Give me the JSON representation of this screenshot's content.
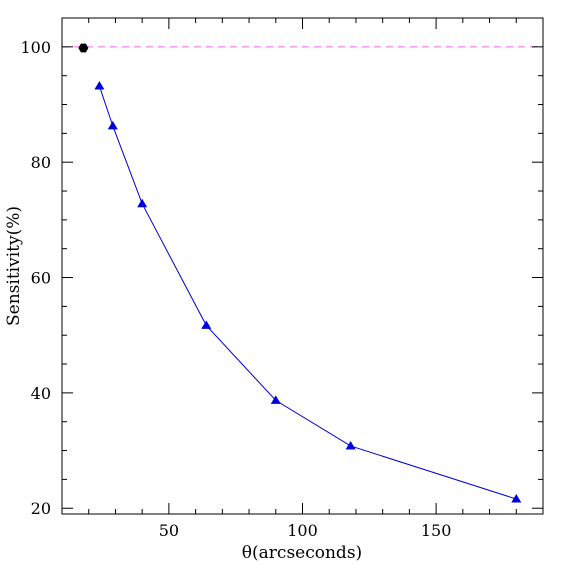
{
  "chart_data": {
    "type": "line",
    "xlabel": "θ(arcseconds)",
    "ylabel": "Sensitivity(%)",
    "xlim": [
      10,
      190
    ],
    "ylim": [
      19,
      105
    ],
    "x_ticks": [
      50,
      100,
      150
    ],
    "y_ticks": [
      20,
      40,
      60,
      80,
      100
    ],
    "x_minor_step": 10,
    "y_minor_step": 5,
    "grid": false,
    "series": [
      {
        "marker": "triangle",
        "color": "#0000dd",
        "x": [
          24,
          29,
          40,
          64,
          90,
          118,
          180
        ],
        "y": [
          93.2,
          86.3,
          72.8,
          51.7,
          38.7,
          30.8,
          21.6
        ]
      },
      {
        "marker": "hexagon",
        "color": "#000000",
        "x": [
          18
        ],
        "y": [
          99.8
        ]
      }
    ],
    "reference_lines": [
      {
        "orientation": "horizontal",
        "y": 100,
        "style": "dashed",
        "color": "#ee66ee"
      }
    ]
  }
}
